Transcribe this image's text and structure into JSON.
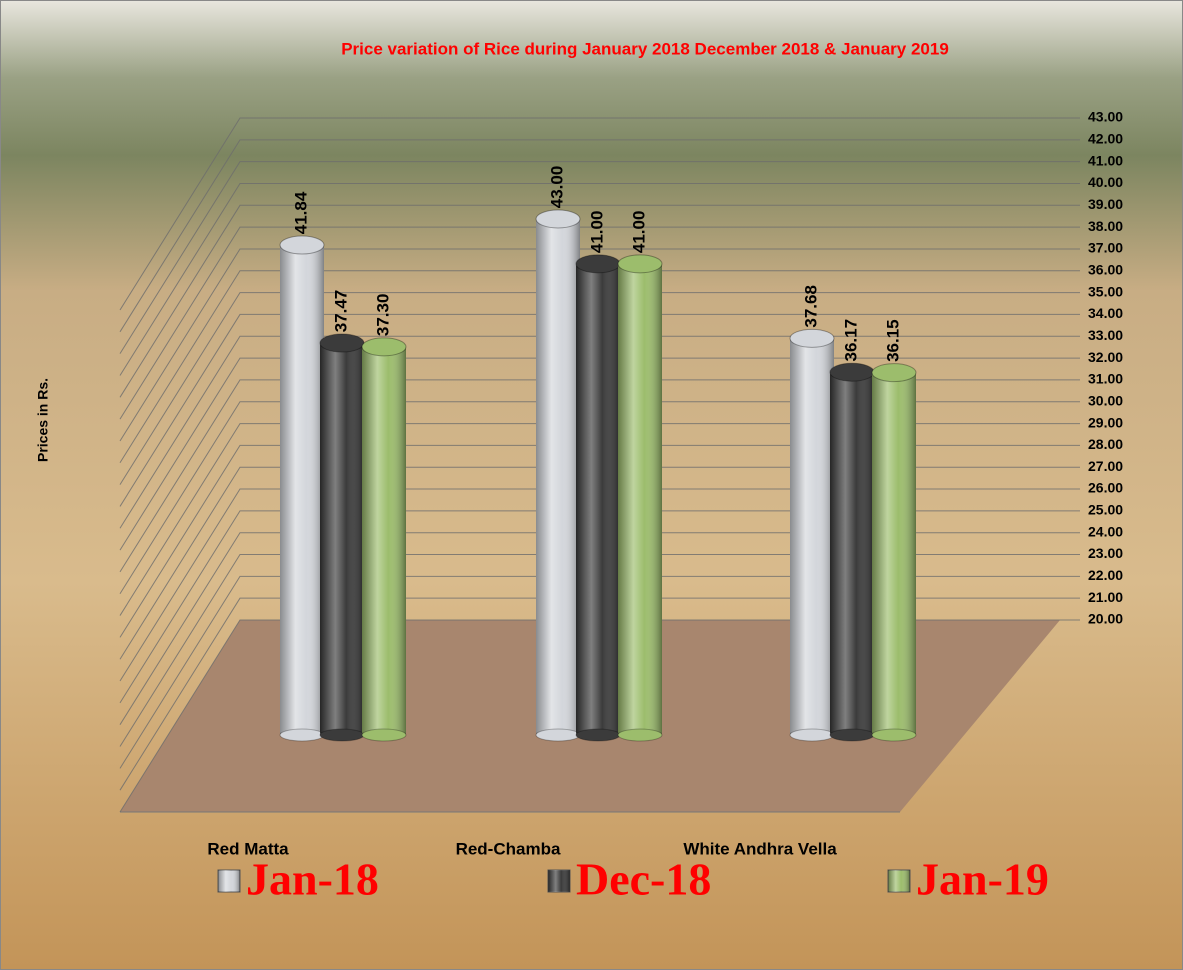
{
  "chart_data": {
    "type": "bar3d",
    "title": "Price variation of Rice during  January  2018  December  2018 &  January 2019",
    "ylabel": "Prices in Rs.",
    "categories": [
      "Red Matta",
      "Red-Chamba",
      "White Andhra Vella"
    ],
    "series": [
      {
        "name": "Jan-18",
        "color": "#d3d6db",
        "values": [
          41.84,
          43.0,
          37.68
        ],
        "value_labels": [
          "41.84",
          "43.00",
          "37.68"
        ]
      },
      {
        "name": "Dec-18",
        "color": "#3b3b3b",
        "values": [
          37.47,
          41.0,
          36.17
        ],
        "value_labels": [
          "37.47",
          "41.00",
          "36.17"
        ]
      },
      {
        "name": "Jan-19",
        "color": "#9cbd6c",
        "values": [
          37.3,
          41.0,
          36.15
        ],
        "value_labels": [
          "37.30",
          "41.00",
          "36.15"
        ]
      }
    ],
    "ylim": [
      20,
      43
    ],
    "yticks": [
      {
        "value": 20,
        "label": "20.00"
      },
      {
        "value": 21,
        "label": "21.00"
      },
      {
        "value": 22,
        "label": "22.00"
      },
      {
        "value": 23,
        "label": "23.00"
      },
      {
        "value": 24,
        "label": "24.00"
      },
      {
        "value": 25,
        "label": "25.00"
      },
      {
        "value": 26,
        "label": "26.00"
      },
      {
        "value": 27,
        "label": "27.00"
      },
      {
        "value": 28,
        "label": "28.00"
      },
      {
        "value": 29,
        "label": "29.00"
      },
      {
        "value": 30,
        "label": "30.00"
      },
      {
        "value": 31,
        "label": "31.00"
      },
      {
        "value": 32,
        "label": "32.00"
      },
      {
        "value": 33,
        "label": "33.00"
      },
      {
        "value": 34,
        "label": "34.00"
      },
      {
        "value": 35,
        "label": "35.00"
      },
      {
        "value": 36,
        "label": "36.00"
      },
      {
        "value": 37,
        "label": "37.00"
      },
      {
        "value": 38,
        "label": "38.00"
      },
      {
        "value": 39,
        "label": "39.00"
      },
      {
        "value": 40,
        "label": "40.00"
      },
      {
        "value": 41,
        "label": "41.00"
      },
      {
        "value": 42,
        "label": "42.00"
      },
      {
        "value": 43,
        "label": "43.00"
      }
    ],
    "grid": true
  }
}
